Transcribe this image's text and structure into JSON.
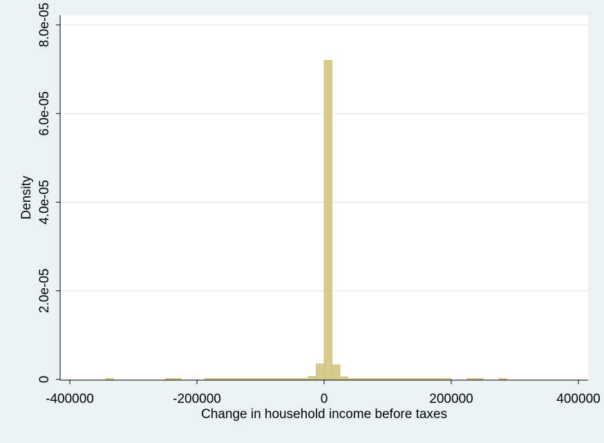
{
  "chart_data": {
    "type": "bar",
    "title": "",
    "xlabel": "Change in household income before taxes",
    "ylabel": "Density",
    "xlim": [
      -400000,
      400000
    ],
    "ylim": [
      0,
      8e-05
    ],
    "x_ticks": [
      -400000,
      -200000,
      0,
      200000,
      400000
    ],
    "x_tick_labels": [
      "-400000",
      "-200000",
      "0",
      "200000",
      "400000"
    ],
    "y_ticks": [
      0,
      2e-05,
      4e-05,
      6e-05,
      8e-05
    ],
    "y_tick_labels": [
      "0",
      "2.0e-05",
      "4.0e-05",
      "6.0e-05",
      "8.0e-05"
    ],
    "grid": true,
    "legend": false,
    "bar_color": "#d6cb8c",
    "bar_edge_color": "#c9bd78",
    "bin_width": 12500,
    "bins": [
      {
        "x0": -343750,
        "x1": -331250,
        "y": 2e-07
      },
      {
        "x0": -250000,
        "x1": -237500,
        "y": 2e-07
      },
      {
        "x0": -237500,
        "x1": -225000,
        "y": 2e-07
      },
      {
        "x0": -187500,
        "x1": -175000,
        "y": 2e-07
      },
      {
        "x0": -175000,
        "x1": -162500,
        "y": 2e-07
      },
      {
        "x0": -162500,
        "x1": -150000,
        "y": 2e-07
      },
      {
        "x0": -150000,
        "x1": -137500,
        "y": 2e-07
      },
      {
        "x0": -137500,
        "x1": -125000,
        "y": 2e-07
      },
      {
        "x0": -125000,
        "x1": -112500,
        "y": 2e-07
      },
      {
        "x0": -112500,
        "x1": -100000,
        "y": 2e-07
      },
      {
        "x0": -100000,
        "x1": -87500,
        "y": 2e-07
      },
      {
        "x0": -87500,
        "x1": -75000,
        "y": 2e-07
      },
      {
        "x0": -75000,
        "x1": -62500,
        "y": 2e-07
      },
      {
        "x0": -62500,
        "x1": -50000,
        "y": 2e-07
      },
      {
        "x0": -50000,
        "x1": -37500,
        "y": 2e-07
      },
      {
        "x0": -37500,
        "x1": -25000,
        "y": 2e-07
      },
      {
        "x0": -25000,
        "x1": -12500,
        "y": 7e-07
      },
      {
        "x0": -12500,
        "x1": 0,
        "y": 3.5e-06
      },
      {
        "x0": 0,
        "x1": 12500,
        "y": 7.2e-05
      },
      {
        "x0": 12500,
        "x1": 25000,
        "y": 3.3e-06
      },
      {
        "x0": 25000,
        "x1": 37500,
        "y": 6e-07
      },
      {
        "x0": 37500,
        "x1": 50000,
        "y": 2e-07
      },
      {
        "x0": 50000,
        "x1": 62500,
        "y": 2e-07
      },
      {
        "x0": 62500,
        "x1": 75000,
        "y": 2e-07
      },
      {
        "x0": 75000,
        "x1": 87500,
        "y": 2e-07
      },
      {
        "x0": 87500,
        "x1": 100000,
        "y": 2e-07
      },
      {
        "x0": 100000,
        "x1": 112500,
        "y": 2e-07
      },
      {
        "x0": 112500,
        "x1": 125000,
        "y": 2e-07
      },
      {
        "x0": 125000,
        "x1": 137500,
        "y": 2e-07
      },
      {
        "x0": 137500,
        "x1": 150000,
        "y": 2e-07
      },
      {
        "x0": 150000,
        "x1": 162500,
        "y": 2e-07
      },
      {
        "x0": 162500,
        "x1": 175000,
        "y": 2e-07
      },
      {
        "x0": 175000,
        "x1": 187500,
        "y": 2e-07
      },
      {
        "x0": 187500,
        "x1": 200000,
        "y": 2e-07
      },
      {
        "x0": 225000,
        "x1": 237500,
        "y": 2e-07
      },
      {
        "x0": 237500,
        "x1": 250000,
        "y": 2e-07
      },
      {
        "x0": 275000,
        "x1": 287500,
        "y": 2e-07
      }
    ]
  }
}
